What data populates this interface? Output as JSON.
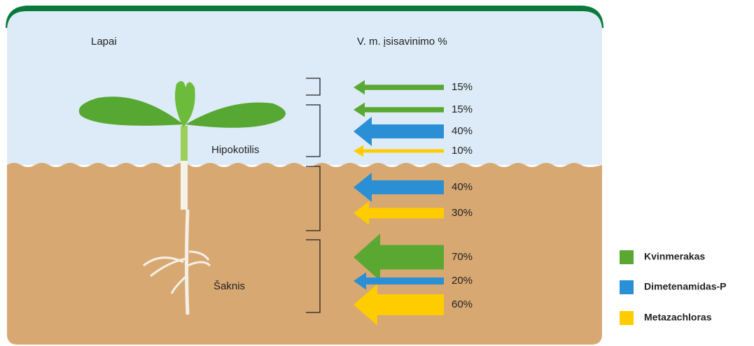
{
  "labels": {
    "leaves": "Lapai",
    "header": "V. m. įsisavinimo %",
    "hypocotyl": "Hipokotilis",
    "root": "Šaknis"
  },
  "legend": [
    {
      "name": "Kvinmerakas",
      "color": "#5aa832"
    },
    {
      "name": "Dimetenamidas-P",
      "color": "#2a8fd4"
    },
    {
      "name": "Metazachloras",
      "color": "#ffcc00"
    }
  ],
  "groups": [
    {
      "arrows": [
        {
          "value": 15,
          "value_label": "15%",
          "color": "#5aa832"
        }
      ]
    },
    {
      "arrows": [
        {
          "value": 15,
          "value_label": "15%",
          "color": "#5aa832"
        },
        {
          "value": 40,
          "value_label": "40%",
          "color": "#2a8fd4"
        },
        {
          "value": 10,
          "value_label": "10%",
          "color": "#ffcc00"
        }
      ]
    },
    {
      "arrows": [
        {
          "value": 40,
          "value_label": "40%",
          "color": "#2a8fd4"
        },
        {
          "value": 30,
          "value_label": "30%",
          "color": "#ffcc00"
        }
      ]
    },
    {
      "arrows": [
        {
          "value": 70,
          "value_label": "70%",
          "color": "#5aa832"
        },
        {
          "value": 20,
          "value_label": "20%",
          "color": "#2a8fd4"
        },
        {
          "value": 60,
          "value_label": "60%",
          "color": "#ffcc00"
        }
      ]
    }
  ]
}
